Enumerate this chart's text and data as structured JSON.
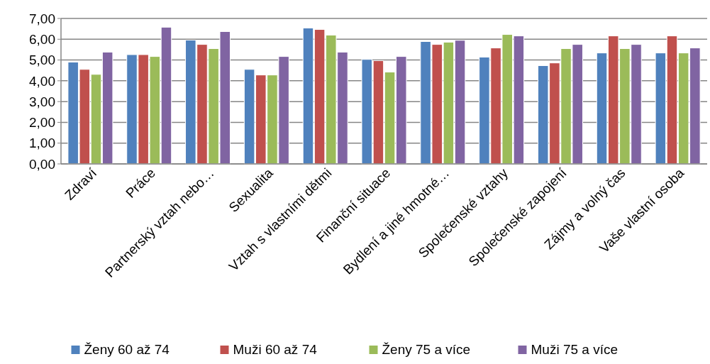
{
  "chart_data": {
    "type": "bar",
    "categories": [
      "Zdraví",
      "Práce",
      "Partnerský vztah nebo…",
      "Sexualita",
      "Vztah s vlastními dětmi",
      "Finanční situace",
      "Bydlení a jiné hmotné…",
      "Společenské vztahy",
      "Společenské zapojení",
      "Zájmy a volný čas",
      "Vaše vlastní osoba"
    ],
    "series": [
      {
        "name": "Ženy 60 až 74",
        "color": "#4f81bd",
        "values": [
          4.9,
          5.26,
          5.96,
          4.55,
          6.54,
          5.03,
          5.89,
          5.14,
          4.73,
          5.34,
          5.34
        ]
      },
      {
        "name": "Muži 60 až 74",
        "color": "#c0504d",
        "values": [
          4.55,
          5.26,
          5.75,
          4.28,
          6.47,
          4.97,
          5.75,
          5.58,
          4.86,
          6.16,
          6.16
        ]
      },
      {
        "name": "Ženy 75 a více",
        "color": "#9bbb59",
        "values": [
          4.31,
          5.17,
          5.55,
          4.28,
          6.2,
          4.42,
          5.86,
          6.23,
          5.55,
          5.55,
          5.34
        ]
      },
      {
        "name": "Muži 75 a více",
        "color": "#8064a2",
        "values": [
          5.38,
          6.58,
          6.37,
          5.17,
          5.38,
          5.17,
          5.95,
          6.16,
          5.75,
          5.75,
          5.58
        ]
      }
    ],
    "ylim": [
      0,
      7
    ],
    "yticks": [
      {
        "value": 0,
        "label": "0,00"
      },
      {
        "value": 1,
        "label": "1,00"
      },
      {
        "value": 2,
        "label": "2,00"
      },
      {
        "value": 3,
        "label": "3,00"
      },
      {
        "value": 4,
        "label": "4,00"
      },
      {
        "value": 5,
        "label": "5,00"
      },
      {
        "value": 6,
        "label": "6,00"
      },
      {
        "value": 7,
        "label": "7,00"
      }
    ],
    "grid": "y",
    "legend": "bottom"
  }
}
